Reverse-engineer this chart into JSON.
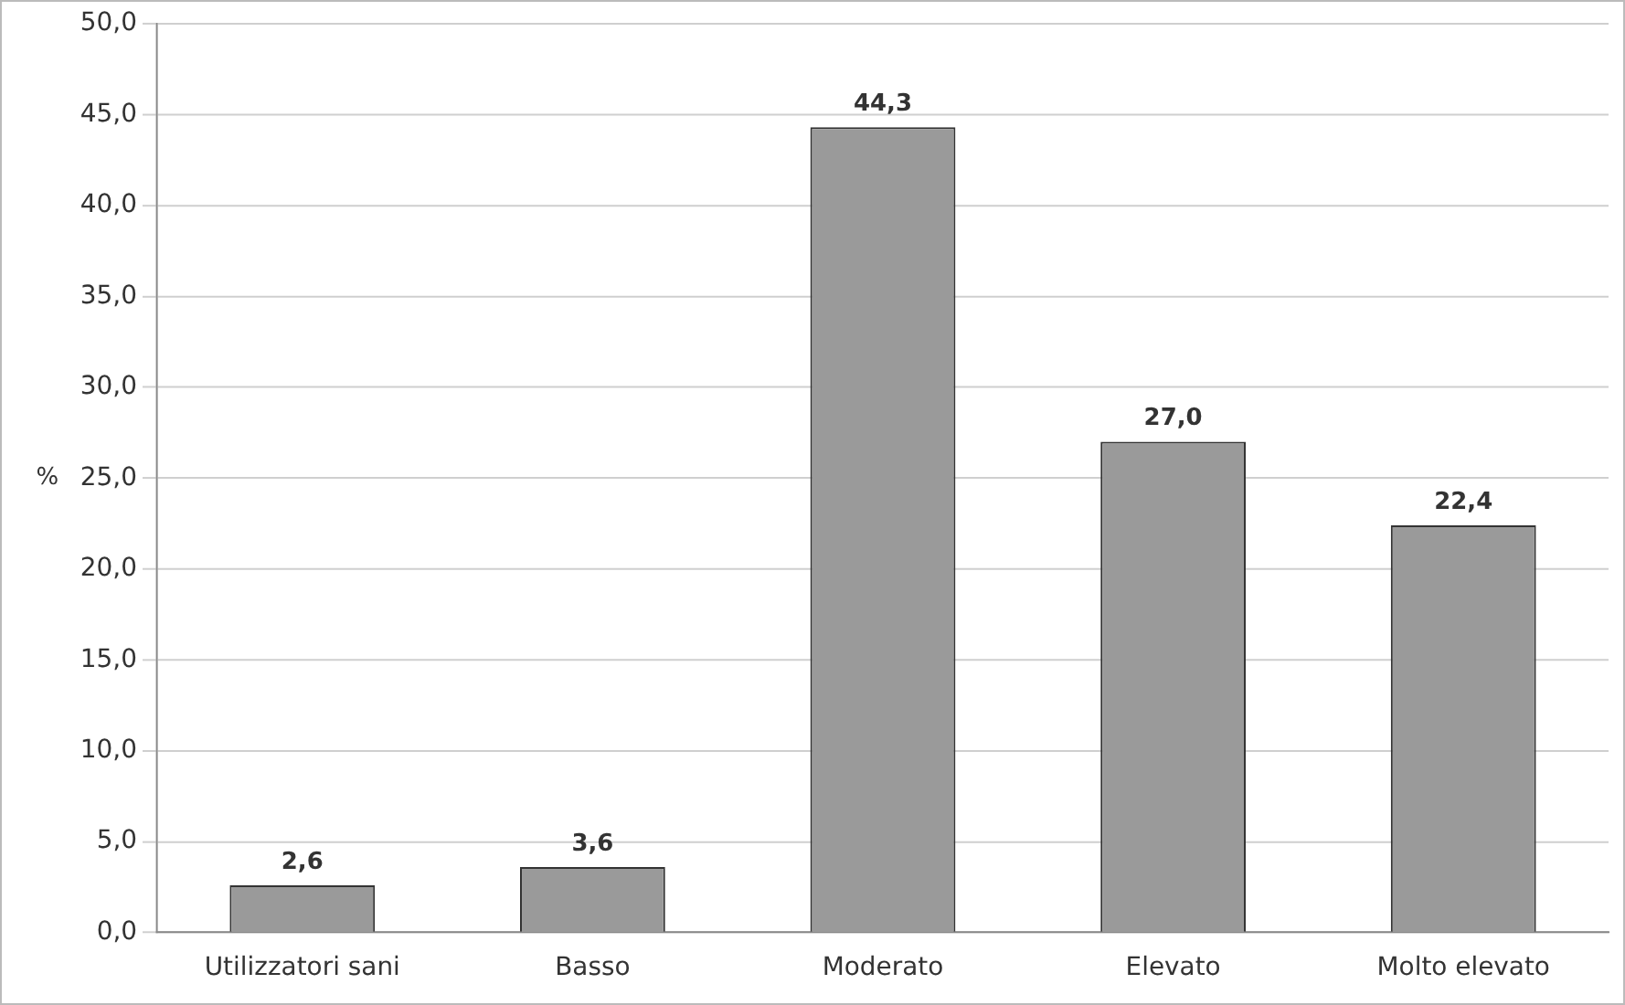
{
  "chart_data": {
    "type": "bar",
    "ylabel": "%",
    "categories": [
      "Utilizzatori sani",
      "Basso",
      "Moderato",
      "Elevato",
      "Molto elevato"
    ],
    "values": [
      2.6,
      3.6,
      44.3,
      27.0,
      22.4
    ],
    "value_labels": [
      "2,6",
      "3,6",
      "44,3",
      "27,0",
      "22,4"
    ],
    "color": "#9a9a9a",
    "ylim": [
      0,
      50
    ],
    "yticks": [
      {
        "value": 0,
        "label": "0,0"
      },
      {
        "value": 5,
        "label": "5,0"
      },
      {
        "value": 10,
        "label": "10,0"
      },
      {
        "value": 15,
        "label": "15,0"
      },
      {
        "value": 20,
        "label": "20,0"
      },
      {
        "value": 25,
        "label": "25,0"
      },
      {
        "value": 30,
        "label": "30,0"
      },
      {
        "value": 35,
        "label": "35,0"
      },
      {
        "value": 40,
        "label": "40,0"
      },
      {
        "value": 45,
        "label": "45,0"
      },
      {
        "value": 50,
        "label": "50,0"
      }
    ],
    "grid": "y",
    "legend": false
  }
}
